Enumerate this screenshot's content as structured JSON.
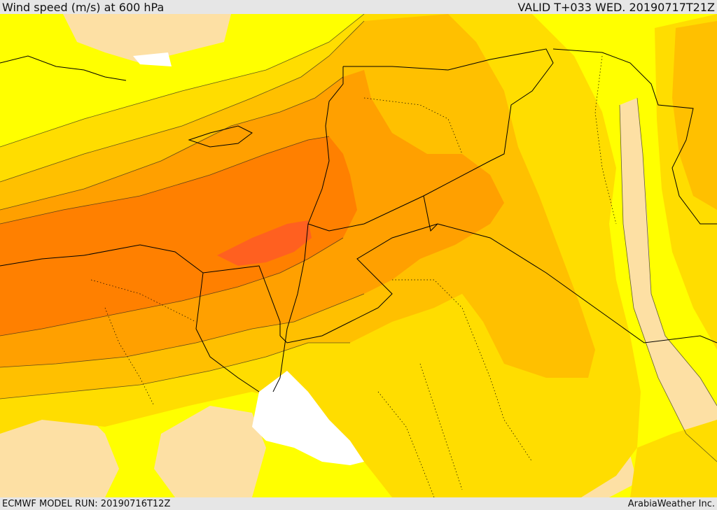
{
  "header": {
    "title": "Wind speed (m/s) at 600 hPa",
    "valid": "VALID T+033 WED. 20190717T21Z"
  },
  "footer": {
    "model_run": "ECMWF MODEL RUN: 20190716T12Z",
    "credit": "ArabiaWeather Inc."
  },
  "map": {
    "field": "wind speed",
    "level": "600 hPa",
    "shading_colors": {
      "water_or_missing": "#ffffff",
      "level_1": "#fde0a4",
      "level_2": "#ffff00",
      "level_3": "#ffdd00",
      "level_4": "#ffc000",
      "level_5": "#ffa000",
      "level_6": "#ff8000",
      "level_7": "#ff6020"
    },
    "boundary_color": "#000000"
  }
}
